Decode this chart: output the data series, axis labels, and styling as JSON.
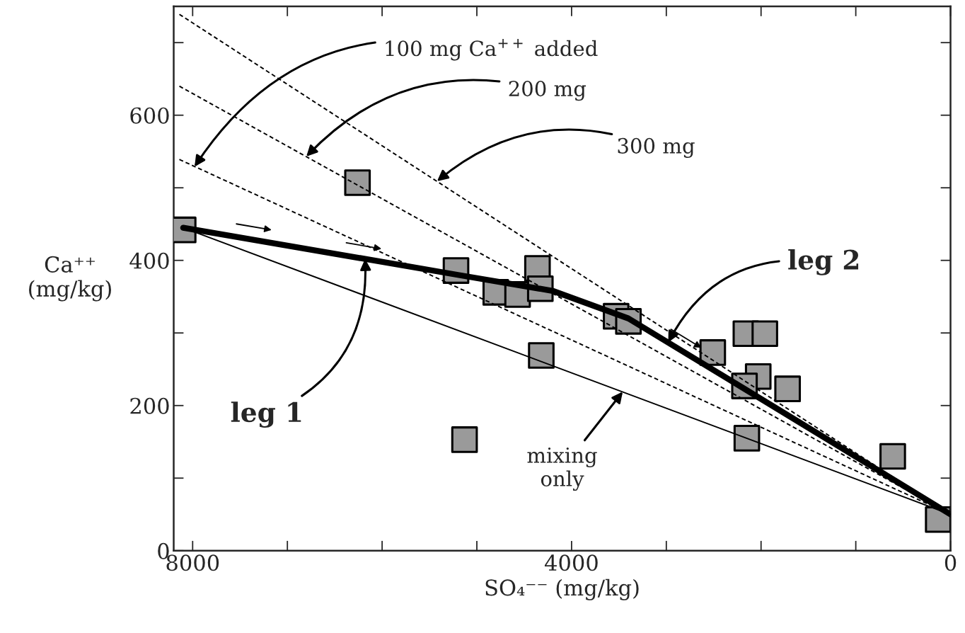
{
  "chart_data": {
    "type": "scatter",
    "xlabel": "SO₄⁻⁻ (mg/kg)",
    "ylabel": "Ca⁺⁺\n(mg/kg)",
    "xlim": [
      8200,
      0
    ],
    "ylim": [
      0,
      750
    ],
    "xticks": [
      8000,
      {
        "value": 7000,
        "label": null
      },
      {
        "value": 6000,
        "label": null
      },
      {
        "value": 5000,
        "label": null
      },
      4000,
      {
        "value": 3000,
        "label": null
      },
      {
        "value": 2000,
        "label": null
      },
      {
        "value": 1000,
        "label": null
      },
      0
    ],
    "yticks": [
      0,
      {
        "value": 100,
        "label": null
      },
      200,
      {
        "value": 300,
        "label": null
      },
      400,
      {
        "value": 500,
        "label": null
      },
      600,
      {
        "value": 700,
        "label": null
      }
    ],
    "grid": false,
    "series": [
      {
        "type": "line",
        "marker": "none",
        "line_style": "dashed",
        "color": "#000000",
        "x": [
          8140,
          0
        ],
        "values": [
          539,
          50
        ]
      },
      {
        "type": "line",
        "marker": "none",
        "line_style": "dashed",
        "color": "#000000",
        "x": [
          8140,
          0
        ],
        "values": [
          640,
          50
        ]
      },
      {
        "type": "line",
        "marker": "none",
        "line_style": "dashed",
        "color": "#000000",
        "x": [
          8140,
          0
        ],
        "values": [
          739,
          50
        ]
      },
      {
        "type": "line",
        "marker": "none",
        "line_style": "solid",
        "color": "#000000",
        "x": [
          8100,
          0
        ],
        "values": [
          445,
          50
        ]
      },
      {
        "type": "line",
        "marker": "none",
        "line_style": "solid",
        "color": "#000000",
        "x": [
          8100,
          5200,
          4200,
          3400,
          2200,
          0
        ],
        "values": [
          445,
          380,
          358,
          320,
          225,
          50
        ]
      },
      {
        "marker": "square",
        "color": "#9a9a9a",
        "x": [
          8100,
          6260,
          5220,
          4800,
          4570,
          4360,
          4330,
          4320,
          5130,
          3530,
          3400,
          2510,
          2160,
          1960,
          2030,
          2175,
          1720,
          2150,
          610,
          130
        ],
        "values": [
          442,
          507,
          386,
          356,
          353,
          389,
          361,
          269,
          153,
          323,
          316,
          273,
          299,
          299,
          240,
          227,
          223,
          155,
          130,
          43
        ]
      }
    ],
    "annotations": [
      {
        "text": "100 mg Ca$^{++}$ added",
        "x": 7980,
        "y": 529
      },
      {
        "text": "200 mg",
        "x": 6800,
        "y": 543
      },
      {
        "text": "300 mg",
        "x": 5420,
        "y": 509
      },
      {
        "text": "leg 1",
        "x": 6180,
        "y": 402
      },
      {
        "text": "leg 2",
        "x": 2980,
        "y": 287
      },
      {
        "text": "mixing\nonly",
        "x": 3460,
        "y": 219
      }
    ]
  }
}
